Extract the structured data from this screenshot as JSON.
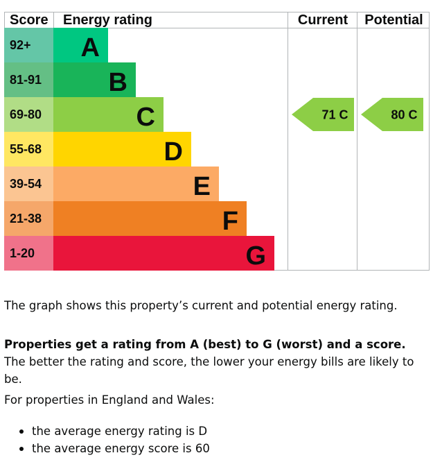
{
  "chart_data": {
    "type": "bar",
    "headers": {
      "score": "Score",
      "rating": "Energy rating",
      "current": "Current",
      "potential": "Potential"
    },
    "bands": [
      {
        "range": "92+",
        "letter": "A",
        "color": "#00c781",
        "score_color": "#64c6a7",
        "max": 100
      },
      {
        "range": "81-91",
        "letter": "B",
        "color": "#19b459",
        "score_color": "#64bf85",
        "max": 91
      },
      {
        "range": "69-80",
        "letter": "C",
        "color": "#8dce46",
        "score_color": "#b1dd86",
        "max": 80
      },
      {
        "range": "55-68",
        "letter": "D",
        "color": "#ffd500",
        "score_color": "#ffe762",
        "max": 68
      },
      {
        "range": "39-54",
        "letter": "E",
        "color": "#fcaa65",
        "score_color": "#fbc592",
        "max": 54
      },
      {
        "range": "21-38",
        "letter": "F",
        "color": "#ef8023",
        "score_color": "#f5a76a",
        "max": 38
      },
      {
        "range": "1-20",
        "letter": "G",
        "color": "#e9153b",
        "score_color": "#f0728a",
        "max": 20
      }
    ],
    "current": {
      "score": 71,
      "letter": "C",
      "label": "71  C",
      "band": 2
    },
    "potential": {
      "score": 80,
      "letter": "C",
      "label": "80  C",
      "band": 2
    }
  },
  "text": {
    "intro": "The graph shows this property’s current and potential energy rating.",
    "bold": "Properties get a rating from A (best) to G (worst) and a score.",
    "rest": " The better the rating and score, the lower your energy bills are likely to be.",
    "region": "For properties in England and Wales:",
    "bullets": [
      "the average energy rating is D",
      "the average energy score is 60"
    ]
  }
}
